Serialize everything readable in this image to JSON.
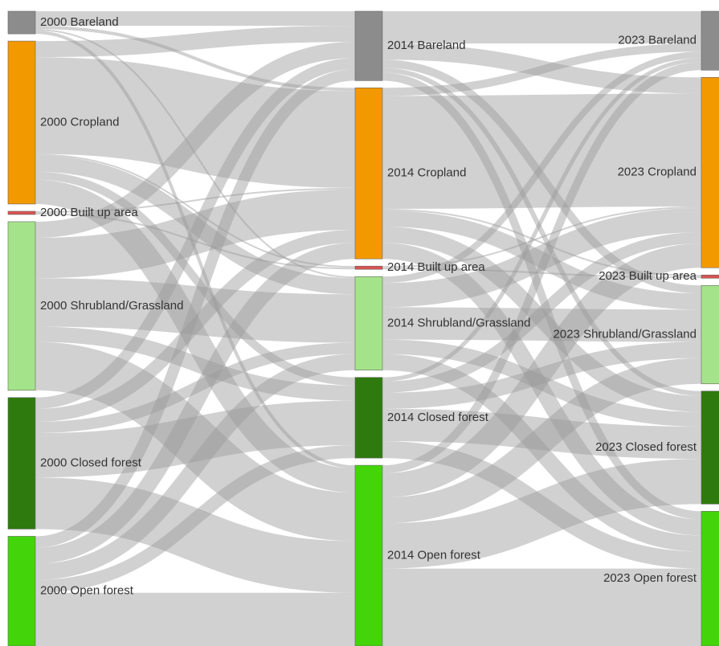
{
  "chart_data": {
    "type": "sankey",
    "link_color": "#999999",
    "nodes": [
      {
        "name": "2000 Bareland",
        "color": "#8c8c8c"
      },
      {
        "name": "2000 Cropland",
        "color": "#f29900"
      },
      {
        "name": "2000 Built up area",
        "color": "#d9534f"
      },
      {
        "name": "2000 Shrubland/Grassland",
        "color": "#a5e38a"
      },
      {
        "name": "2000 Closed forest",
        "color": "#2e7a0e"
      },
      {
        "name": "2000 Open forest",
        "color": "#44d40a"
      },
      {
        "name": "2014 Bareland",
        "color": "#8c8c8c"
      },
      {
        "name": "2014 Cropland",
        "color": "#f29900"
      },
      {
        "name": "2014 Built up area",
        "color": "#d9534f"
      },
      {
        "name": "2014 Shrubland/Grassland",
        "color": "#a5e38a"
      },
      {
        "name": "2014 Closed forest",
        "color": "#2e7a0e"
      },
      {
        "name": "2014 Open forest",
        "color": "#44d40a"
      },
      {
        "name": "2023 Bareland",
        "color": "#8c8c8c"
      },
      {
        "name": "2023 Cropland",
        "color": "#f29900"
      },
      {
        "name": "2023 Built up area",
        "color": "#d9534f"
      },
      {
        "name": "2023 Shrubland/Grassland",
        "color": "#a5e38a"
      },
      {
        "name": "2023 Closed forest",
        "color": "#2e7a0e"
      },
      {
        "name": "2023 Open forest",
        "color": "#44d40a"
      }
    ],
    "links": [
      {
        "source": 0,
        "target": 6,
        "value": 18
      },
      {
        "source": 0,
        "target": 7,
        "value": 4
      },
      {
        "source": 0,
        "target": 9,
        "value": 2
      },
      {
        "source": 0,
        "target": 11,
        "value": 4
      },
      {
        "source": 1,
        "target": 6,
        "value": 20
      },
      {
        "source": 1,
        "target": 7,
        "value": 120
      },
      {
        "source": 1,
        "target": 8,
        "value": 2
      },
      {
        "source": 1,
        "target": 9,
        "value": 20
      },
      {
        "source": 1,
        "target": 10,
        "value": 10
      },
      {
        "source": 1,
        "target": 11,
        "value": 30
      },
      {
        "source": 2,
        "target": 7,
        "value": 2
      },
      {
        "source": 2,
        "target": 8,
        "value": 2
      },
      {
        "source": 3,
        "target": 6,
        "value": 20
      },
      {
        "source": 3,
        "target": 7,
        "value": 50
      },
      {
        "source": 3,
        "target": 9,
        "value": 60
      },
      {
        "source": 3,
        "target": 10,
        "value": 19
      },
      {
        "source": 3,
        "target": 11,
        "value": 60
      },
      {
        "source": 4,
        "target": 6,
        "value": 14
      },
      {
        "source": 4,
        "target": 7,
        "value": 16
      },
      {
        "source": 4,
        "target": 9,
        "value": 14
      },
      {
        "source": 4,
        "target": 10,
        "value": 55
      },
      {
        "source": 4,
        "target": 11,
        "value": 64
      },
      {
        "source": 5,
        "target": 6,
        "value": 14
      },
      {
        "source": 5,
        "target": 7,
        "value": 20
      },
      {
        "source": 5,
        "target": 9,
        "value": 20
      },
      {
        "source": 5,
        "target": 10,
        "value": 16
      },
      {
        "source": 5,
        "target": 11,
        "value": 66
      },
      {
        "source": 6,
        "target": 12,
        "value": 40
      },
      {
        "source": 6,
        "target": 13,
        "value": 20
      },
      {
        "source": 6,
        "target": 15,
        "value": 10
      },
      {
        "source": 6,
        "target": 16,
        "value": 6
      },
      {
        "source": 6,
        "target": 17,
        "value": 10
      },
      {
        "source": 7,
        "target": 12,
        "value": 10
      },
      {
        "source": 7,
        "target": 13,
        "value": 140
      },
      {
        "source": 7,
        "target": 14,
        "value": 2
      },
      {
        "source": 7,
        "target": 15,
        "value": 20
      },
      {
        "source": 7,
        "target": 16,
        "value": 20
      },
      {
        "source": 7,
        "target": 17,
        "value": 20
      },
      {
        "source": 8,
        "target": 13,
        "value": 2
      },
      {
        "source": 8,
        "target": 14,
        "value": 2
      },
      {
        "source": 9,
        "target": 12,
        "value": 8
      },
      {
        "source": 9,
        "target": 13,
        "value": 30
      },
      {
        "source": 9,
        "target": 15,
        "value": 40
      },
      {
        "source": 9,
        "target": 16,
        "value": 18
      },
      {
        "source": 9,
        "target": 17,
        "value": 20
      },
      {
        "source": 10,
        "target": 12,
        "value": 5
      },
      {
        "source": 10,
        "target": 13,
        "value": 14
      },
      {
        "source": 10,
        "target": 15,
        "value": 20
      },
      {
        "source": 10,
        "target": 16,
        "value": 40
      },
      {
        "source": 10,
        "target": 17,
        "value": 21
      },
      {
        "source": 11,
        "target": 12,
        "value": 10
      },
      {
        "source": 11,
        "target": 13,
        "value": 30
      },
      {
        "source": 11,
        "target": 15,
        "value": 32
      },
      {
        "source": 11,
        "target": 16,
        "value": 56
      },
      {
        "source": 11,
        "target": 17,
        "value": 96
      }
    ]
  }
}
